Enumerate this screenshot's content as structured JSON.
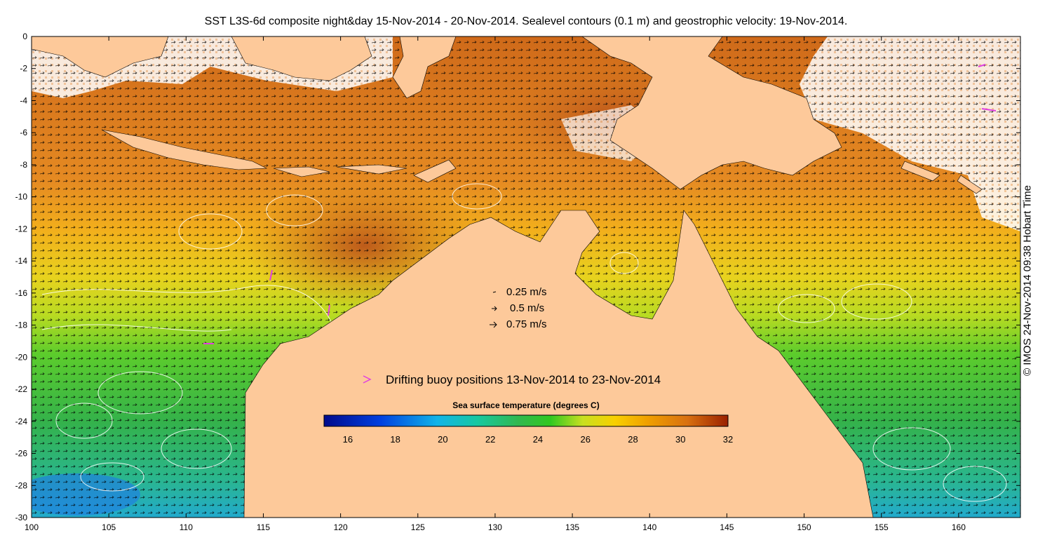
{
  "title": "SST L3S-6d composite night&day 15-Nov-2014 - 20-Nov-2014. Sealevel contours (0.1 m) and geostrophic velocity: 19-Nov-2014.",
  "credit": "© IMOS 24-Nov-2014 09:38 Hobart Time",
  "axes": {
    "x_ticks": [
      "100",
      "105",
      "110",
      "115",
      "120",
      "125",
      "130",
      "135",
      "140",
      "145",
      "150",
      "155",
      "160"
    ],
    "y_ticks": [
      "0",
      "-2",
      "-4",
      "-6",
      "-8",
      "-10",
      "-12",
      "-14",
      "-16",
      "-18",
      "-20",
      "-22",
      "-24",
      "-26",
      "-28",
      "-30"
    ],
    "xlim": [
      100,
      164
    ],
    "ylim": [
      -30,
      0
    ]
  },
  "velocity_legend": [
    {
      "label": "0.25 m/s"
    },
    {
      "label": "0.5 m/s"
    },
    {
      "label": "0.75 m/s"
    }
  ],
  "buoy_legend": {
    "label": "Drifting buoy positions 13-Nov-2014 to 23-Nov-2014",
    "color": "#e040e0"
  },
  "colorbar": {
    "label": "Sea surface temperature (degrees C)",
    "ticks": [
      "16",
      "18",
      "20",
      "22",
      "24",
      "26",
      "28",
      "30",
      "32"
    ],
    "range": [
      15,
      32
    ]
  },
  "colors": {
    "land": "#fdc99a",
    "contour": "#ffffff",
    "arrow": "#000000"
  }
}
